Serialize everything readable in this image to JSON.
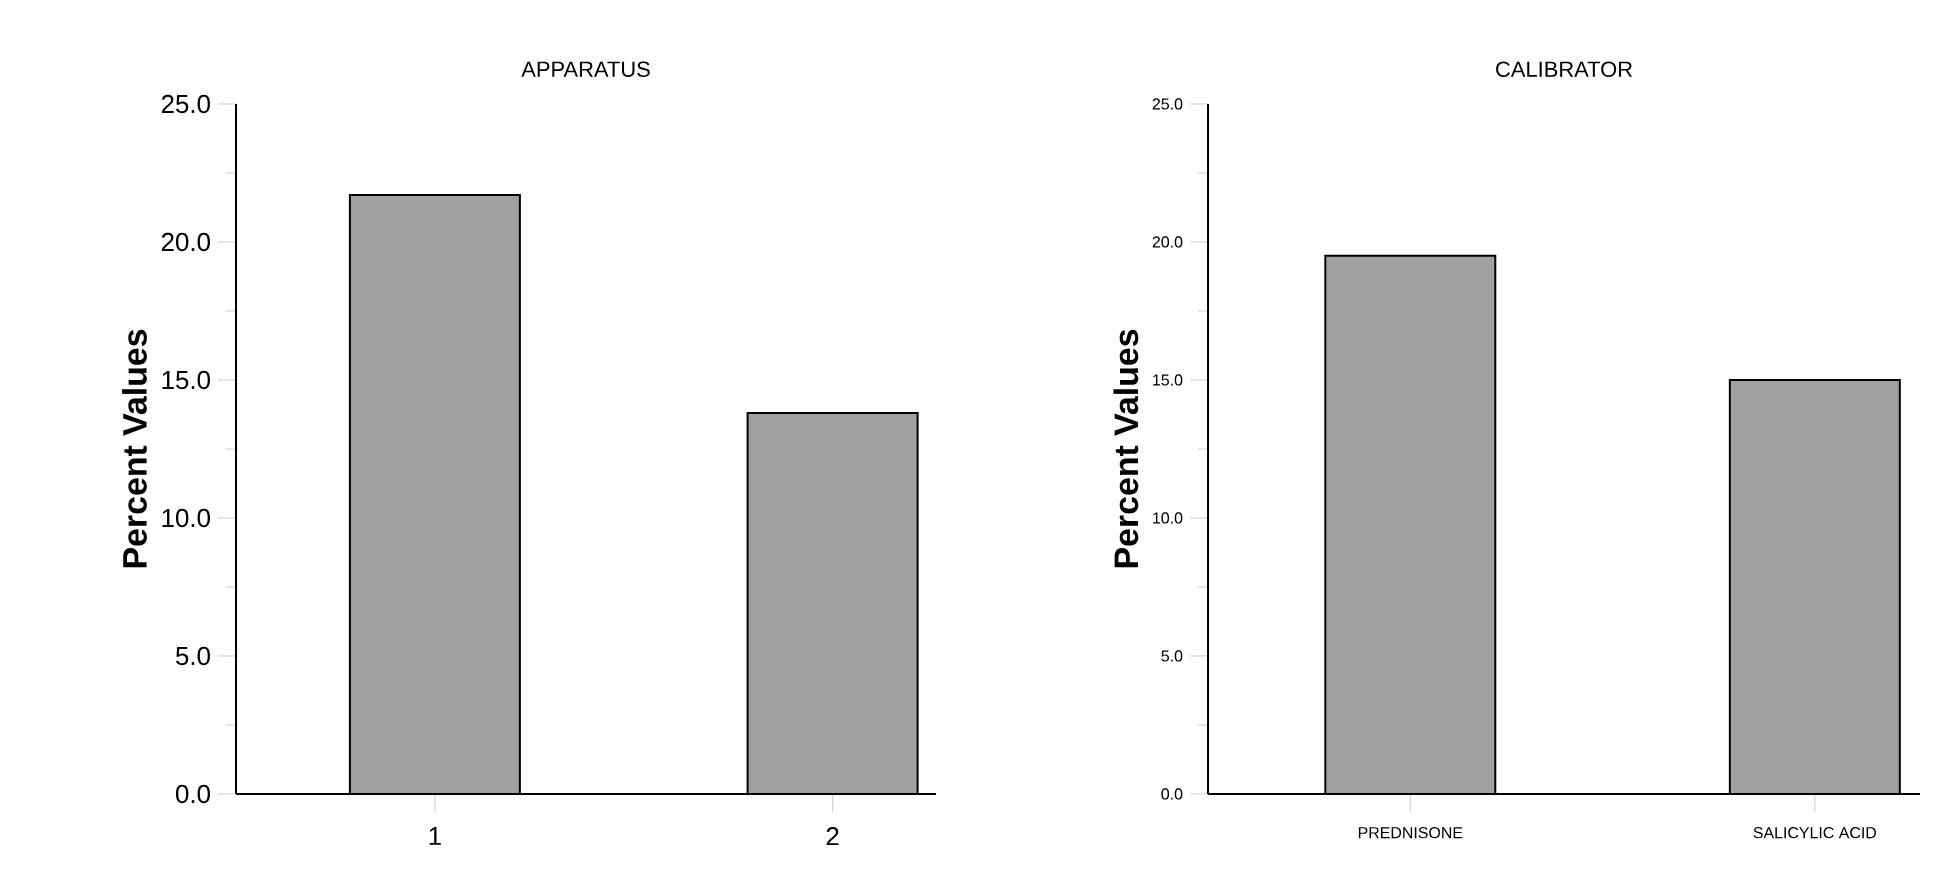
{
  "chart_data": [
    {
      "type": "bar",
      "title": "APPARATUS",
      "ylabel": "Percent Values",
      "categories": [
        "1",
        "2"
      ],
      "values": [
        21.7,
        13.8
      ],
      "color": "#a0a0a0",
      "ylim": [
        0,
        25
      ],
      "yticks": [
        {
          "value": 0,
          "label": "0.0"
        },
        {
          "value": 2.5,
          "label": null
        },
        {
          "value": 5,
          "label": "5.0"
        },
        {
          "value": 7.5,
          "label": null
        },
        {
          "value": 10,
          "label": "10.0"
        },
        {
          "value": 12.5,
          "label": null
        },
        {
          "value": 15,
          "label": "15.0"
        },
        {
          "value": 17.5,
          "label": null
        },
        {
          "value": 20,
          "label": "20.0"
        },
        {
          "value": 22.5,
          "label": null
        },
        {
          "value": 25,
          "label": "25.0"
        }
      ]
    },
    {
      "type": "bar",
      "title": "CALIBRATOR",
      "ylabel": "Percent Values",
      "categories": [
        "PREDNISONE",
        "SALICYLIC ACID"
      ],
      "values": [
        19.5,
        15.0
      ],
      "color": "#a0a0a0",
      "ylim": [
        0,
        25
      ],
      "yticks": [
        {
          "value": 0,
          "label": "0.0"
        },
        {
          "value": 2.5,
          "label": null
        },
        {
          "value": 5,
          "label": "5.0"
        },
        {
          "value": 7.5,
          "label": null
        },
        {
          "value": 10,
          "label": "10.0"
        },
        {
          "value": 12.5,
          "label": null
        },
        {
          "value": 15,
          "label": "15.0"
        },
        {
          "value": 17.5,
          "label": null
        },
        {
          "value": 20,
          "label": "20.0"
        },
        {
          "value": 22.5,
          "label": null
        },
        {
          "value": 25,
          "label": "25.0"
        }
      ]
    }
  ]
}
